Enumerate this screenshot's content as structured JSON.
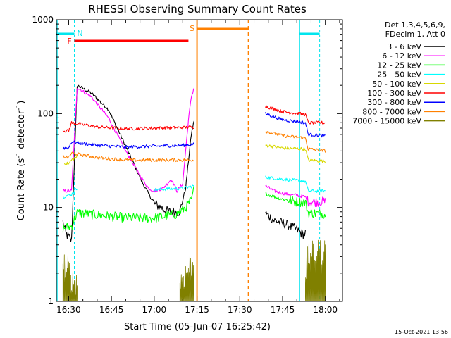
{
  "chart_data": {
    "type": "line",
    "title": "RHESSI Observing Summary Count Rates",
    "xlabel": "Start Time (05-Jun-07 16:25:42)",
    "ylabel": "Count Rate (s⁻¹ detector⁻¹)",
    "ylabel_main": "Count Rate (s",
    "ylabel_sup1": "-1",
    "ylabel_mid": " detector",
    "ylabel_sup2": "-1",
    "ylabel_end": ")",
    "y_scale": "log",
    "ylim": [
      1,
      1000
    ],
    "xlim": [
      "16:25:42",
      "18:06:00"
    ],
    "x_ticks": [
      "16:30",
      "16:45",
      "17:00",
      "17:15",
      "17:30",
      "17:45",
      "18:00"
    ],
    "y_ticks": [
      "1",
      "10",
      "100",
      "1000"
    ],
    "footer": "15-Oct-2021 13:56",
    "legend_header": [
      "Det 1,3,4,5,6,9,",
      "FDecim 1, Att 0"
    ],
    "flags": [
      {
        "label": "N",
        "color": "#00e5ee"
      },
      {
        "label": "F",
        "color": "#ff0000"
      },
      {
        "label": "S",
        "color": "#ff8000"
      }
    ],
    "series": [
      {
        "name": "3 - 6 keV",
        "color": "#000000",
        "points": [
          [
            "16:28",
            7
          ],
          [
            "16:29",
            5.3
          ],
          [
            "16:31",
            4.4
          ],
          [
            "16:33",
            200
          ],
          [
            "16:38",
            165
          ],
          [
            "16:44",
            110
          ],
          [
            "16:50",
            45
          ],
          [
            "16:56",
            18
          ],
          [
            "17:00",
            11
          ],
          [
            "17:05",
            9
          ],
          [
            "17:09",
            9
          ],
          [
            "17:11",
            16
          ],
          [
            "17:13",
            60
          ],
          [
            "17:14",
            85
          ],
          [
            "17:39",
            8.7
          ],
          [
            "17:42",
            7.3
          ],
          [
            "17:46",
            6.7
          ],
          [
            "17:50",
            5.8
          ],
          [
            "17:52",
            5.2
          ],
          [
            "17:53",
            5.3
          ]
        ]
      },
      {
        "name": "6 - 12 keV",
        "color": "#ff00ff",
        "points": [
          [
            "16:28",
            15
          ],
          [
            "16:31",
            15
          ],
          [
            "16:33",
            190
          ],
          [
            "16:38",
            150
          ],
          [
            "16:44",
            90
          ],
          [
            "16:50",
            40
          ],
          [
            "16:55",
            22
          ],
          [
            "16:58",
            16
          ],
          [
            "17:00",
            15
          ],
          [
            "17:03",
            16
          ],
          [
            "17:06",
            20
          ],
          [
            "17:08",
            15
          ],
          [
            "17:10",
            18
          ],
          [
            "17:11",
            40
          ],
          [
            "17:12",
            85
          ],
          [
            "17:13",
            150
          ],
          [
            "17:14",
            190
          ],
          [
            "17:39",
            17
          ],
          [
            "17:42",
            15
          ],
          [
            "17:46",
            14
          ],
          [
            "17:50",
            13.5
          ],
          [
            "17:53",
            13
          ],
          [
            "17:54",
            11.5
          ],
          [
            "18:00",
            11.5
          ]
        ]
      },
      {
        "name": "12 - 25 keV",
        "color": "#00ff00",
        "points": [
          [
            "16:28",
            6
          ],
          [
            "16:31",
            6.3
          ],
          [
            "16:33",
            8.8
          ],
          [
            "16:40",
            8.3
          ],
          [
            "16:50",
            7.8
          ],
          [
            "17:00",
            7.7
          ],
          [
            "17:08",
            8.5
          ],
          [
            "17:11",
            10
          ],
          [
            "17:13",
            12
          ],
          [
            "17:14",
            17
          ],
          [
            "17:39",
            14
          ],
          [
            "17:44",
            12.5
          ],
          [
            "17:50",
            11.5
          ],
          [
            "17:53",
            11.4
          ],
          [
            "17:54",
            8.8
          ],
          [
            "18:00",
            8.5
          ]
        ]
      },
      {
        "name": "25 - 50 keV",
        "color": "#00ffff",
        "points": [
          [
            "16:28",
            13
          ],
          [
            "16:31",
            13.8
          ],
          [
            "16:33",
            16
          ],
          [
            "16:45",
            15
          ],
          [
            "17:00",
            15.5
          ],
          [
            "17:10",
            16
          ],
          [
            "17:14",
            17
          ],
          [
            "17:39",
            21
          ],
          [
            "17:45",
            20
          ],
          [
            "17:53",
            19
          ],
          [
            "17:54",
            15
          ],
          [
            "18:00",
            15
          ]
        ]
      },
      {
        "name": "50 - 100 keV",
        "color": "#d8d800",
        "points": [
          [
            "16:28",
            30
          ],
          [
            "16:30",
            29
          ],
          [
            "16:31",
            32
          ],
          [
            "16:33",
            35
          ],
          [
            "16:45",
            33
          ],
          [
            "17:00",
            33
          ],
          [
            "17:14",
            33
          ],
          [
            "17:39",
            46
          ],
          [
            "17:45",
            43
          ],
          [
            "17:53",
            42
          ],
          [
            "17:54",
            32
          ],
          [
            "18:00",
            31
          ]
        ]
      },
      {
        "name": "100 - 300 keV",
        "color": "#ff0000",
        "points": [
          [
            "16:28",
            66
          ],
          [
            "16:30",
            65
          ],
          [
            "16:31",
            80
          ],
          [
            "16:40",
            72
          ],
          [
            "16:50",
            69
          ],
          [
            "17:00",
            70
          ],
          [
            "17:10",
            71
          ],
          [
            "17:14",
            72
          ],
          [
            "17:39",
            120
          ],
          [
            "17:45",
            105
          ],
          [
            "17:53",
            98
          ],
          [
            "17:54",
            80
          ],
          [
            "18:00",
            80
          ]
        ]
      },
      {
        "name": "300 - 800 keV",
        "color": "#0000ff",
        "points": [
          [
            "16:28",
            43
          ],
          [
            "16:30",
            43
          ],
          [
            "16:31",
            50
          ],
          [
            "16:40",
            46
          ],
          [
            "16:50",
            44
          ],
          [
            "17:00",
            45
          ],
          [
            "17:10",
            46
          ],
          [
            "17:14",
            47
          ],
          [
            "17:39",
            100
          ],
          [
            "17:45",
            86
          ],
          [
            "17:53",
            80
          ],
          [
            "17:54",
            60
          ],
          [
            "18:00",
            58
          ]
        ]
      },
      {
        "name": "800 - 7000 keV",
        "color": "#ff8000",
        "points": [
          [
            "16:28",
            35
          ],
          [
            "16:30",
            34
          ],
          [
            "16:31",
            38
          ],
          [
            "16:40",
            34
          ],
          [
            "16:50",
            32
          ],
          [
            "17:00",
            32
          ],
          [
            "17:10",
            32
          ],
          [
            "17:14",
            32
          ],
          [
            "17:39",
            65
          ],
          [
            "17:45",
            58
          ],
          [
            "17:53",
            55
          ],
          [
            "17:54",
            42
          ],
          [
            "18:00",
            40
          ]
        ]
      },
      {
        "name": "7000 - 15000 keV",
        "color": "#808000",
        "points": [
          [
            "16:28",
            2.5
          ],
          [
            "16:30",
            2.2
          ],
          [
            "16:31",
            1.8
          ],
          [
            "16:33",
            1.6
          ],
          [
            "17:09",
            1.6
          ],
          [
            "17:11",
            2
          ],
          [
            "17:13",
            2.5
          ],
          [
            "17:14",
            3
          ],
          [
            "17:38",
            2
          ],
          [
            "17:53",
            2
          ],
          [
            "17:54",
            3
          ],
          [
            "18:00",
            3.5
          ]
        ]
      }
    ]
  }
}
